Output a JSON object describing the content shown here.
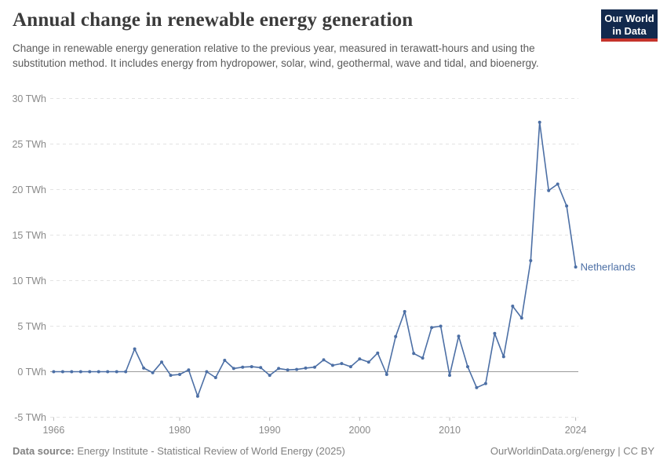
{
  "logo": {
    "line1": "Our World",
    "line2": "in Data",
    "bg_color": "#12294D",
    "accent_color": "#C5332B"
  },
  "footer": {
    "source_label": "Data source:",
    "source_text": " Energy Institute - Statistical Review of World Energy (2025)",
    "site": "OurWorldinData.org/energy",
    "divider": " | ",
    "license": "CC BY"
  },
  "chart_data": {
    "type": "line",
    "title": "Annual change in renewable energy generation",
    "subtitle": "Change in renewable energy generation relative to the previous year, measured in terawatt-hours and using the substitution method. It includes energy from hydropower, solar, wind, geothermal, wave and tidal, and bioenergy.",
    "unit": "TWh",
    "xlim": [
      1966,
      2024
    ],
    "ylim": [
      -5,
      30
    ],
    "grid": "horizontal-dashed",
    "legend_position": "end-of-line-label",
    "line_color": "#4C6FA5",
    "zero_line_color": "#9b9b9b",
    "gridline_color": "#e3e3e3",
    "axis_text_color": "#8a8a8a",
    "x_ticks": [
      {
        "v": 1966,
        "label": "1966"
      },
      {
        "v": 1980,
        "label": "1980"
      },
      {
        "v": 1990,
        "label": "1990"
      },
      {
        "v": 2000,
        "label": "2000"
      },
      {
        "v": 2010,
        "label": "2010"
      },
      {
        "v": 2024,
        "label": "2024"
      }
    ],
    "y_ticks": [
      {
        "v": -5,
        "label": "-5 TWh"
      },
      {
        "v": 0,
        "label": "0 TWh"
      },
      {
        "v": 5,
        "label": "5 TWh"
      },
      {
        "v": 10,
        "label": "10 TWh"
      },
      {
        "v": 15,
        "label": "15 TWh"
      },
      {
        "v": 20,
        "label": "20 TWh"
      },
      {
        "v": 25,
        "label": "25 TWh"
      },
      {
        "v": 30,
        "label": "30 TWh"
      }
    ],
    "x": [
      1966,
      1967,
      1968,
      1969,
      1970,
      1971,
      1972,
      1973,
      1974,
      1975,
      1976,
      1977,
      1978,
      1979,
      1980,
      1981,
      1982,
      1983,
      1984,
      1985,
      1986,
      1987,
      1988,
      1989,
      1990,
      1991,
      1992,
      1993,
      1994,
      1995,
      1996,
      1997,
      1998,
      1999,
      2000,
      2001,
      2002,
      2003,
      2004,
      2005,
      2006,
      2007,
      2008,
      2009,
      2010,
      2011,
      2012,
      2013,
      2014,
      2015,
      2016,
      2017,
      2018,
      2019,
      2020,
      2021,
      2022,
      2023,
      2024
    ],
    "series": [
      {
        "name": "Netherlands",
        "color": "#4C6FA5",
        "values": [
          0,
          0,
          0,
          0,
          0,
          0,
          0,
          0,
          0,
          2.5,
          0.4,
          -0.1,
          1.05,
          -0.4,
          -0.3,
          0.2,
          -2.7,
          0,
          -0.65,
          1.25,
          0.35,
          0.5,
          0.55,
          0.45,
          -0.4,
          0.35,
          0.2,
          0.25,
          0.4,
          0.5,
          1.3,
          0.7,
          0.9,
          0.55,
          1.4,
          1.05,
          2.05,
          -0.3,
          3.85,
          6.6,
          2.0,
          1.5,
          4.85,
          5.0,
          -0.4,
          3.9,
          0.55,
          -1.75,
          -1.3,
          4.2,
          1.65,
          7.2,
          5.9,
          12.2,
          27.4,
          19.9,
          20.6,
          18.2,
          11.5
        ]
      }
    ]
  }
}
